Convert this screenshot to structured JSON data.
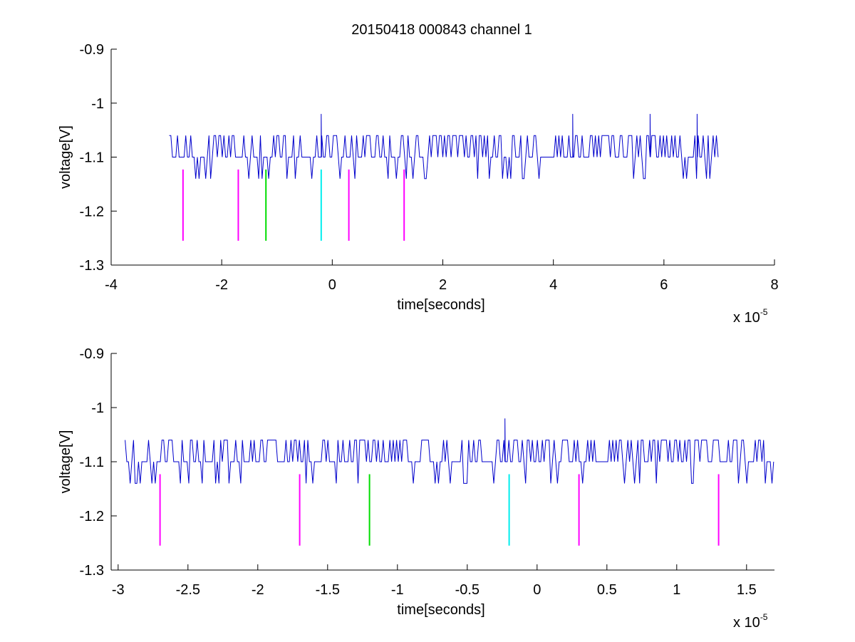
{
  "figure": {
    "title": "20150418 000843 channel 1"
  },
  "chart_data": [
    {
      "type": "line",
      "title": "20150418 000843 channel 1",
      "xlabel": "time[seconds]",
      "ylabel": "voltage[V]",
      "x_exponent_base": "x 10",
      "x_exponent_power": "-5",
      "xlim": [
        -4,
        8
      ],
      "ylim": [
        -1.3,
        -0.9
      ],
      "xticks": [
        -4,
        -2,
        0,
        2,
        4,
        6,
        8
      ],
      "xtick_labels": [
        "-4",
        "-2",
        "0",
        "2",
        "4",
        "6",
        "8"
      ],
      "yticks": [
        -1.3,
        -1.2,
        -1.1,
        -1.0,
        -0.9
      ],
      "ytick_labels": [
        "-1.3",
        "-1.2",
        "-1.1",
        "-1",
        "-0.9"
      ],
      "grid": false,
      "signal": {
        "color": "#0000cc",
        "x_start": -2.95,
        "x_end": 7.0,
        "baseline": -1.1,
        "high_level": -1.06,
        "low_level": -1.14,
        "spikes": [
          {
            "x": -0.2,
            "y": -1.02
          },
          {
            "x": 4.35,
            "y": -1.02
          },
          {
            "x": 5.75,
            "y": -1.02
          },
          {
            "x": 6.6,
            "y": -1.02
          }
        ]
      },
      "markers": [
        {
          "x": -2.7,
          "y1": -1.123,
          "y2": -1.255,
          "color": "#ff00ff"
        },
        {
          "x": -1.7,
          "y1": -1.123,
          "y2": -1.255,
          "color": "#ff00ff"
        },
        {
          "x": -1.2,
          "y1": -1.123,
          "y2": -1.255,
          "color": "#00dd00"
        },
        {
          "x": -0.2,
          "y1": -1.123,
          "y2": -1.255,
          "color": "#00eeee"
        },
        {
          "x": 0.3,
          "y1": -1.123,
          "y2": -1.255,
          "color": "#ff00ff"
        },
        {
          "x": 1.3,
          "y1": -1.123,
          "y2": -1.255,
          "color": "#ff00ff"
        }
      ]
    },
    {
      "type": "line",
      "title": "",
      "xlabel": "time[seconds]",
      "ylabel": "voltage[V]",
      "x_exponent_base": "x 10",
      "x_exponent_power": "-5",
      "xlim": [
        -3.05,
        1.7
      ],
      "ylim": [
        -1.3,
        -0.9
      ],
      "xticks": [
        -3,
        -2.5,
        -2,
        -1.5,
        -1,
        -0.5,
        0,
        0.5,
        1,
        1.5
      ],
      "xtick_labels": [
        "-3",
        "-2.5",
        "-2",
        "-1.5",
        "-1",
        "-0.5",
        "0",
        "0.5",
        "1",
        "1.5"
      ],
      "yticks": [
        -1.3,
        -1.2,
        -1.1,
        -1.0,
        -0.9
      ],
      "ytick_labels": [
        "-1.3",
        "-1.2",
        "-1.1",
        "-1",
        "-0.9"
      ],
      "grid": false,
      "signal": {
        "color": "#0000cc",
        "x_start": -2.95,
        "x_end": 1.7,
        "baseline": -1.1,
        "high_level": -1.06,
        "low_level": -1.14,
        "spikes": [
          {
            "x": -0.23,
            "y": -1.02
          }
        ]
      },
      "markers": [
        {
          "x": -2.7,
          "y1": -1.123,
          "y2": -1.255,
          "color": "#ff00ff"
        },
        {
          "x": -1.7,
          "y1": -1.123,
          "y2": -1.255,
          "color": "#ff00ff"
        },
        {
          "x": -1.2,
          "y1": -1.123,
          "y2": -1.255,
          "color": "#00dd00"
        },
        {
          "x": -0.2,
          "y1": -1.123,
          "y2": -1.255,
          "color": "#00eeee"
        },
        {
          "x": 0.3,
          "y1": -1.123,
          "y2": -1.255,
          "color": "#ff00ff"
        },
        {
          "x": 1.3,
          "y1": -1.123,
          "y2": -1.255,
          "color": "#ff00ff"
        }
      ]
    }
  ]
}
